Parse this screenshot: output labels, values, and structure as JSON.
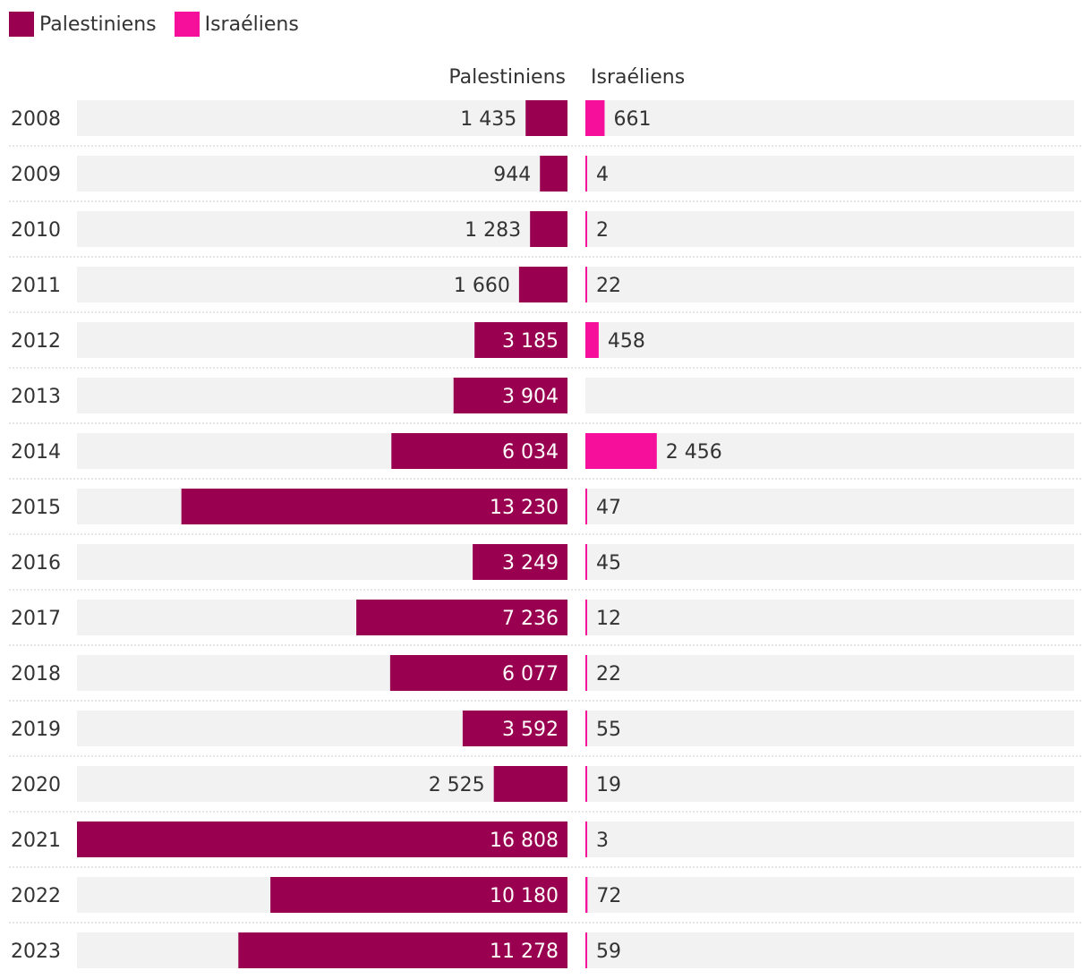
{
  "chart_data": {
    "type": "bar",
    "title": "",
    "legend": [
      {
        "name": "Palestiniens",
        "color": "#990050"
      },
      {
        "name": "Israéliens",
        "color": "#f50f9b"
      }
    ],
    "column_headers": {
      "left": "Palestiniens",
      "right": "Israéliens"
    },
    "categories": [
      "2008",
      "2009",
      "2010",
      "2011",
      "2012",
      "2013",
      "2014",
      "2015",
      "2016",
      "2017",
      "2018",
      "2019",
      "2020",
      "2021",
      "2022",
      "2023"
    ],
    "series": [
      {
        "name": "Palestiniens",
        "color": "#990050",
        "values": [
          1435,
          944,
          1283,
          1660,
          3185,
          3904,
          6034,
          13230,
          3249,
          7236,
          6077,
          3592,
          2525,
          16808,
          10180,
          11278
        ],
        "labels": [
          "1 435",
          "944",
          "1 283",
          "1 660",
          "3 185",
          "3 904",
          "6 034",
          "13 230",
          "3 249",
          "7 236",
          "6 077",
          "3 592",
          "2 525",
          "16 808",
          "10 180",
          "11 278"
        ]
      },
      {
        "name": "Israéliens",
        "color": "#f50f9b",
        "values": [
          661,
          4,
          2,
          22,
          458,
          null,
          2456,
          47,
          45,
          12,
          22,
          55,
          19,
          3,
          72,
          59
        ],
        "labels": [
          "661",
          "4",
          "2",
          "22",
          "458",
          "",
          "2 456",
          "47",
          "45",
          "12",
          "22",
          "55",
          "19",
          "3",
          "72",
          "59"
        ]
      }
    ],
    "xlim_left": [
      0,
      16808
    ],
    "xlim_right": [
      0,
      16808
    ]
  },
  "colors": {
    "track": "#f2f2f2",
    "text": "#333333",
    "label_on_bar": "#ffffff",
    "divider": "#cccccc"
  }
}
